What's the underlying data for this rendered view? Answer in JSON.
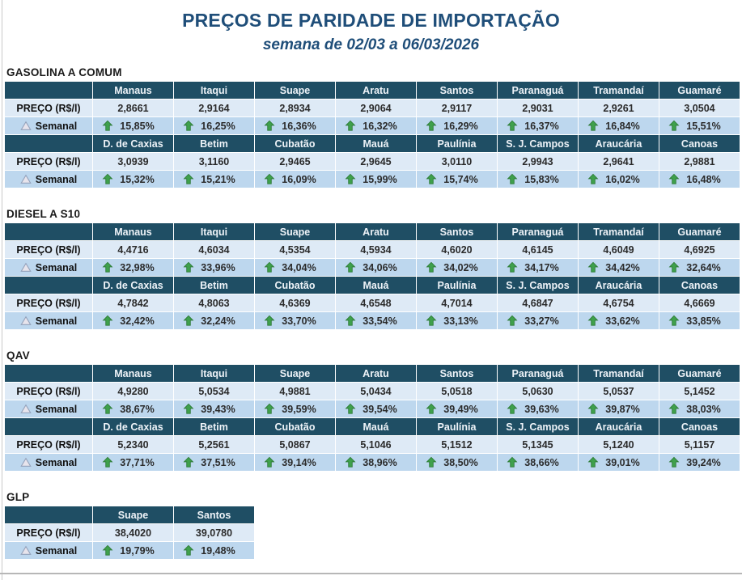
{
  "title": "PREÇOS DE PARIDADE DE IMPORTAÇÃO",
  "subtitle": "semana de 02/03 a 06/03/2026",
  "row_labels": {
    "price": "PREÇO (R$/l)",
    "weekly": "Semanal"
  },
  "icons": {
    "weekly_label": "triangle-icon",
    "increase": "up-arrow-icon"
  },
  "colors": {
    "title_color": "#1F4E79",
    "header_bg": "#1F4E64",
    "price_row_bg": "#DEEAF6",
    "weekly_row_bg": "#BDD7EE",
    "arrow_green": "#3FA04C",
    "arrow_green_dark": "#2C7A35"
  },
  "sections": [
    {
      "name": "GASOLINA A COMUM",
      "blocks": [
        {
          "cities": [
            "Manaus",
            "Itaqui",
            "Suape",
            "Aratu",
            "Santos",
            "Paranaguá",
            "Tramandaí",
            "Guamaré"
          ],
          "prices": [
            "2,8661",
            "2,9164",
            "2,8934",
            "2,9064",
            "2,9117",
            "2,9031",
            "2,9261",
            "3,0504"
          ],
          "weekly": [
            "15,85%",
            "16,25%",
            "16,36%",
            "16,32%",
            "16,29%",
            "16,37%",
            "16,84%",
            "15,51%"
          ]
        },
        {
          "cities": [
            "D. de Caxias",
            "Betim",
            "Cubatão",
            "Mauá",
            "Paulínia",
            "S. J. Campos",
            "Araucária",
            "Canoas"
          ],
          "prices": [
            "3,0939",
            "3,1160",
            "2,9465",
            "2,9645",
            "3,0110",
            "2,9943",
            "2,9641",
            "2,9881"
          ],
          "weekly": [
            "15,32%",
            "15,21%",
            "16,09%",
            "15,99%",
            "15,74%",
            "15,83%",
            "16,02%",
            "16,48%"
          ]
        }
      ]
    },
    {
      "name": "DIESEL A S10",
      "blocks": [
        {
          "cities": [
            "Manaus",
            "Itaqui",
            "Suape",
            "Aratu",
            "Santos",
            "Paranaguá",
            "Tramandaí",
            "Guamaré"
          ],
          "prices": [
            "4,4716",
            "4,6034",
            "4,5354",
            "4,5934",
            "4,6020",
            "4,6145",
            "4,6049",
            "4,6925"
          ],
          "weekly": [
            "32,98%",
            "33,96%",
            "34,04%",
            "34,06%",
            "34,02%",
            "34,17%",
            "34,42%",
            "32,64%"
          ]
        },
        {
          "cities": [
            "D. de Caxias",
            "Betim",
            "Cubatão",
            "Mauá",
            "Paulínia",
            "S. J. Campos",
            "Araucária",
            "Canoas"
          ],
          "prices": [
            "4,7842",
            "4,8063",
            "4,6369",
            "4,6548",
            "4,7014",
            "4,6847",
            "4,6754",
            "4,6669"
          ],
          "weekly": [
            "32,42%",
            "32,24%",
            "33,70%",
            "33,54%",
            "33,13%",
            "33,27%",
            "33,62%",
            "33,85%"
          ]
        }
      ]
    },
    {
      "name": "QAV",
      "blocks": [
        {
          "cities": [
            "Manaus",
            "Itaqui",
            "Suape",
            "Aratu",
            "Santos",
            "Paranaguá",
            "Tramandaí",
            "Guamaré"
          ],
          "prices": [
            "4,9280",
            "5,0534",
            "4,9881",
            "5,0434",
            "5,0518",
            "5,0630",
            "5,0537",
            "5,1452"
          ],
          "weekly": [
            "38,67%",
            "39,43%",
            "39,59%",
            "39,54%",
            "39,49%",
            "39,63%",
            "39,87%",
            "38,03%"
          ]
        },
        {
          "cities": [
            "D. de Caxias",
            "Betim",
            "Cubatão",
            "Mauá",
            "Paulínia",
            "S. J. Campos",
            "Araucária",
            "Canoas"
          ],
          "prices": [
            "5,2340",
            "5,2561",
            "5,0867",
            "5,1046",
            "5,1512",
            "5,1345",
            "5,1240",
            "5,1157"
          ],
          "weekly": [
            "37,71%",
            "37,51%",
            "39,14%",
            "38,96%",
            "38,50%",
            "38,66%",
            "39,01%",
            "39,24%"
          ]
        }
      ]
    },
    {
      "name": "GLP",
      "blocks": [
        {
          "cities": [
            "Suape",
            "Santos"
          ],
          "prices": [
            "38,4020",
            "39,0780"
          ],
          "weekly": [
            "19,79%",
            "19,48%"
          ]
        }
      ]
    }
  ]
}
